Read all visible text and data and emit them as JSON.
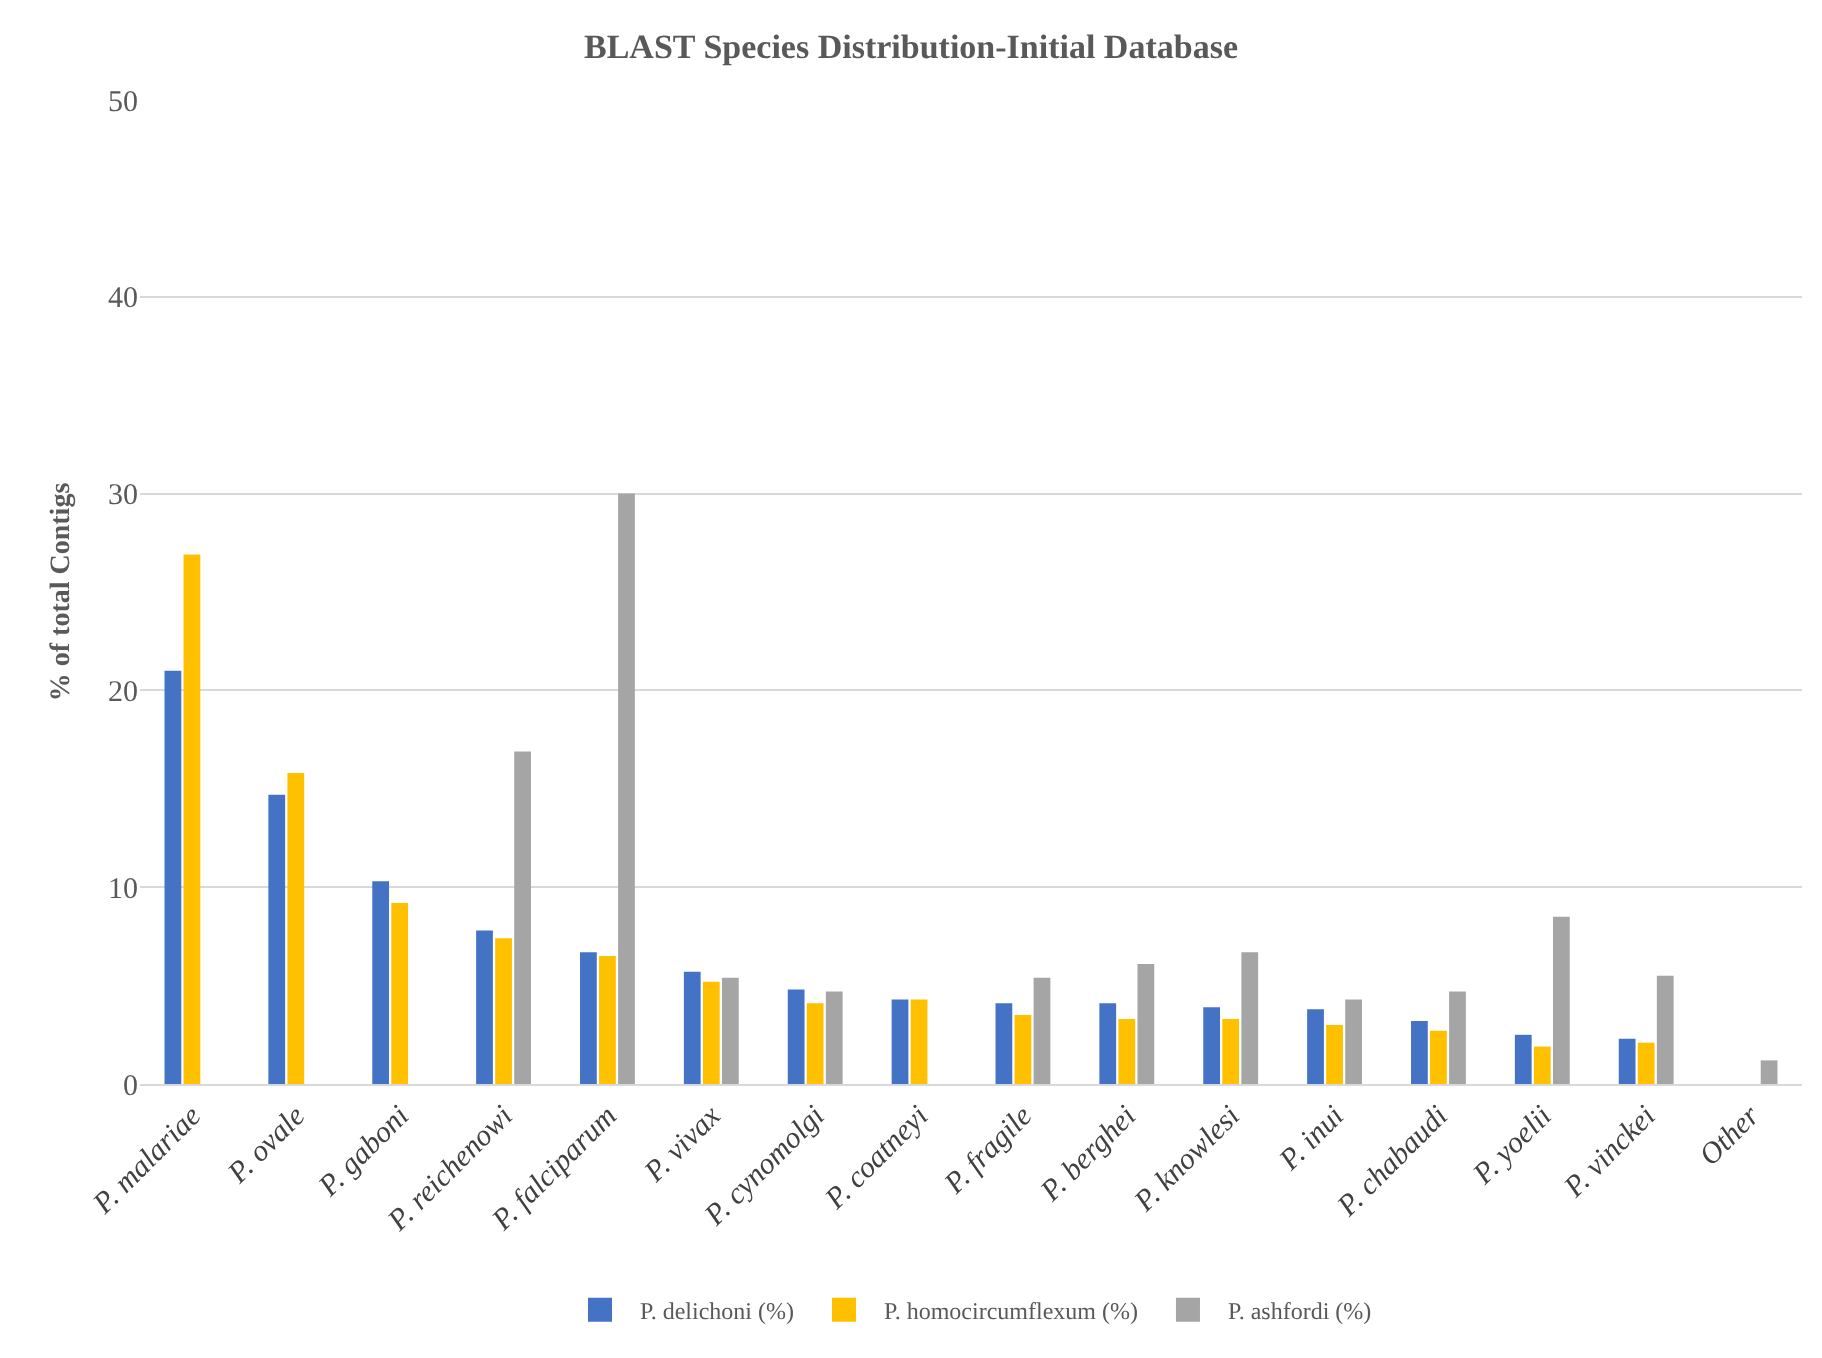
{
  "chart_data": {
    "type": "bar",
    "title": "BLAST Species Distribution-Initial Database",
    "ylabel": "% of total Contigs",
    "categories": [
      "P. malariae",
      "P. ovale",
      "P. gaboni",
      "P. reichenowi",
      "P. falciparum",
      "P. vivax",
      "P. cynomolgi",
      "P. coatneyi",
      "P. fragile",
      "P. berghei",
      "P. knowlesi",
      "P. inui",
      "P. chabaudi",
      "P. yoelii",
      "P. vinckei",
      "Other"
    ],
    "series": [
      {
        "name": "P. delichoni (%)",
        "color": "#4472c4",
        "values": [
          21.0,
          14.7,
          10.3,
          7.8,
          6.7,
          5.7,
          4.8,
          4.3,
          4.1,
          4.1,
          3.9,
          3.8,
          3.2,
          2.5,
          2.3,
          null
        ]
      },
      {
        "name": "P. homocircumflexum (%)",
        "color": "#ffc000",
        "values": [
          26.9,
          15.8,
          9.2,
          7.4,
          6.5,
          5.2,
          4.1,
          4.3,
          3.5,
          3.3,
          3.3,
          3.0,
          2.7,
          1.9,
          2.1,
          null
        ]
      },
      {
        "name": "P. ashfordi (%)",
        "color": "#a5a5a5",
        "values": [
          null,
          null,
          null,
          16.9,
          30.0,
          5.4,
          4.7,
          null,
          5.4,
          6.1,
          6.7,
          4.3,
          4.7,
          8.5,
          5.5,
          1.2
        ]
      }
    ],
    "ylim": [
      0,
      50
    ],
    "yticks": [
      0,
      10,
      20,
      30,
      40,
      50
    ],
    "grid": "y",
    "legend": "bottom"
  }
}
